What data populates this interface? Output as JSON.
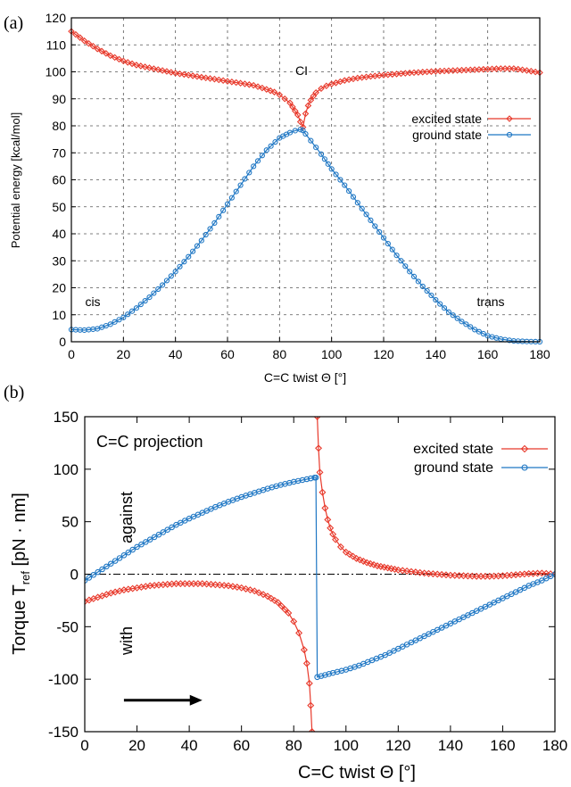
{
  "chart_data": [
    {
      "panel_label": "(a)",
      "type": "line",
      "xlabel": "C=C twist Θ  [°]",
      "ylabel": "Potential energy [kcal/mol]",
      "xlim": [
        0,
        180
      ],
      "ylim": [
        0,
        120
      ],
      "xticks": [
        "0",
        "20",
        "40",
        "60",
        "80",
        "100",
        "120",
        "140",
        "160",
        "180"
      ],
      "yticks": [
        "0",
        "10",
        "20",
        "30",
        "40",
        "50",
        "60",
        "70",
        "80",
        "90",
        "100",
        "110",
        "120"
      ],
      "grid": true,
      "legend_position": "right",
      "annotations": [
        {
          "text": "CI",
          "x": 88,
          "y": 104
        },
        {
          "text": "cis",
          "x": 8,
          "y": 14
        },
        {
          "text": "trans",
          "x": 162,
          "y": 14
        }
      ],
      "series": [
        {
          "name": "excited state",
          "color": "#e8392b",
          "marker": "diamond",
          "x": [
            0,
            5,
            10,
            15,
            20,
            25,
            30,
            35,
            40,
            45,
            50,
            55,
            60,
            65,
            70,
            75,
            78,
            80,
            82,
            84,
            85,
            86,
            87,
            88,
            89,
            90,
            91,
            92,
            93,
            94,
            96,
            98,
            100,
            105,
            110,
            115,
            120,
            125,
            130,
            135,
            140,
            145,
            150,
            155,
            160,
            165,
            170,
            175,
            180
          ],
          "y": [
            115,
            111.5,
            108.5,
            106,
            104,
            102.5,
            101.5,
            100.5,
            99.5,
            98.8,
            98,
            97.3,
            96.5,
            95.8,
            95,
            93.5,
            92.5,
            91.5,
            90,
            88.5,
            87,
            85.5,
            84,
            81.5,
            79.5,
            84.5,
            87.5,
            89.5,
            91,
            92.3,
            93.8,
            94.8,
            95.5,
            96.8,
            97.7,
            98.3,
            98.8,
            99.2,
            99.6,
            99.9,
            100.2,
            100.4,
            100.6,
            100.8,
            101,
            101.2,
            101.2,
            100.5,
            99.7
          ]
        },
        {
          "name": "ground state",
          "color": "#1f77c4",
          "marker": "circle",
          "x": [
            0,
            5,
            10,
            15,
            20,
            25,
            30,
            35,
            40,
            45,
            50,
            55,
            60,
            65,
            70,
            75,
            80,
            84,
            86,
            88,
            89,
            90,
            92,
            94,
            96,
            100,
            105,
            110,
            115,
            120,
            125,
            130,
            135,
            140,
            145,
            150,
            155,
            160,
            165,
            170,
            175,
            180
          ],
          "y": [
            4.5,
            4.3,
            4.8,
            6.5,
            9,
            12.5,
            16.5,
            21,
            26,
            31.5,
            37.5,
            44,
            51,
            58,
            65,
            71,
            75.5,
            77.5,
            78.2,
            78.6,
            78.3,
            77,
            74.5,
            72,
            69.5,
            64,
            58,
            51.5,
            45,
            38.5,
            32,
            26,
            20.5,
            15.5,
            11,
            7.5,
            4.5,
            2.2,
            1,
            0.3,
            0.1,
            0
          ]
        }
      ]
    },
    {
      "panel_label": "(b)",
      "type": "line",
      "xlabel": "C=C twist Θ  [°]",
      "ylabel_main": "Torque T",
      "ylabel_sub": "ref",
      "ylabel_units": " [pN · nm]",
      "xlim": [
        0,
        180
      ],
      "ylim": [
        -150,
        150
      ],
      "xticks": [
        "0",
        "20",
        "40",
        "60",
        "80",
        "100",
        "120",
        "140",
        "160",
        "180"
      ],
      "yticks": [
        "-150",
        "-100",
        "-50",
        "0",
        "50",
        "100",
        "150"
      ],
      "grid": false,
      "zero_line": "dash-dot",
      "legend_position": "top-right",
      "annotations": [
        {
          "text": "C=C projection"
        },
        {
          "text": "against"
        },
        {
          "text": "with"
        }
      ],
      "arrow": {
        "from_x": 15,
        "to_x": 45,
        "y": -120
      },
      "series": [
        {
          "name": "excited state",
          "color": "#e8392b",
          "marker": "diamond",
          "x": [
            0,
            5,
            10,
            15,
            20,
            25,
            30,
            35,
            40,
            45,
            50,
            55,
            60,
            65,
            70,
            74,
            78,
            80,
            82,
            84,
            85,
            86,
            86.5,
            87
          ],
          "y": [
            -26,
            -22,
            -18,
            -15,
            -13,
            -11,
            -10,
            -9,
            -9,
            -9,
            -10,
            -11,
            -13,
            -16,
            -21,
            -27,
            -37,
            -45,
            -56,
            -72,
            -85,
            -104,
            -125,
            -150
          ]
        },
        {
          "name": "excited state (branch 2)",
          "color": "#e8392b",
          "marker": "diamond",
          "x": [
            89,
            89.5,
            90,
            91,
            92,
            93,
            94,
            95,
            96,
            98,
            100,
            104,
            108,
            112,
            116,
            120,
            125,
            130,
            135,
            140,
            145,
            150,
            155,
            160,
            165,
            170,
            175,
            180
          ],
          "y": [
            150,
            120,
            97,
            78,
            63,
            52,
            44,
            38,
            33,
            26,
            21,
            15,
            11,
            8,
            6,
            4,
            2.5,
            1,
            0,
            -1,
            -1.5,
            -2,
            -2,
            -1.5,
            -0.5,
            0.5,
            1,
            0
          ]
        },
        {
          "name": "ground state",
          "color": "#1f77c4",
          "marker": "circle",
          "x": [
            0,
            5,
            10,
            15,
            20,
            25,
            30,
            35,
            40,
            45,
            50,
            55,
            60,
            65,
            70,
            75,
            80,
            85,
            88,
            88.5,
            89,
            92,
            95,
            100,
            105,
            110,
            115,
            120,
            125,
            130,
            135,
            140,
            145,
            150,
            155,
            160,
            165,
            170,
            175,
            180
          ],
          "y": [
            -6,
            2,
            10,
            18,
            26,
            33,
            40,
            47,
            53,
            58.5,
            64,
            69,
            73.5,
            77.5,
            81.5,
            85,
            88,
            90.5,
            92,
            92,
            -98,
            -96,
            -94,
            -91,
            -87,
            -82,
            -77,
            -71,
            -65,
            -59,
            -53,
            -47,
            -41,
            -35,
            -29,
            -23,
            -17,
            -11,
            -6,
            0
          ]
        }
      ]
    }
  ]
}
